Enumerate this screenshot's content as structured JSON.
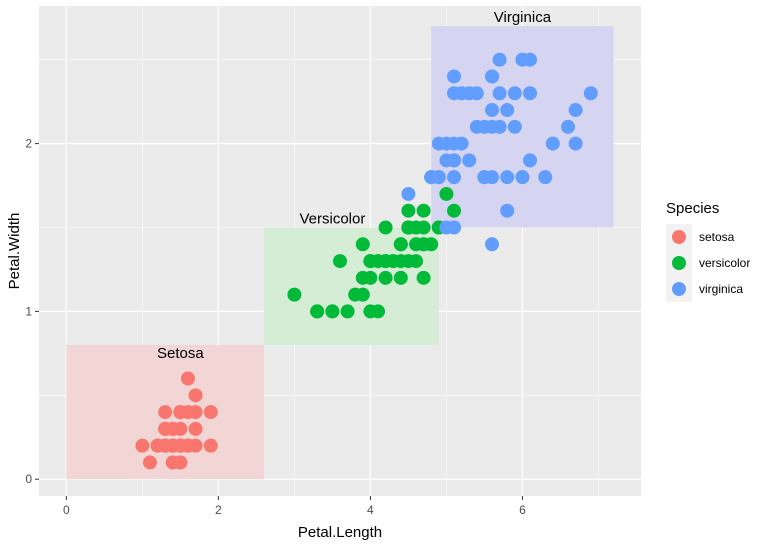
{
  "chart_data": {
    "type": "scatter",
    "title": "",
    "xlabel": "Petal.Length",
    "ylabel": "Petal.Width",
    "xlim": [
      -0.36,
      7.56
    ],
    "ylim": [
      -0.1,
      2.82
    ],
    "x_ticks": [
      0,
      2,
      4,
      6
    ],
    "y_ticks": [
      0,
      1,
      2
    ],
    "x_tick_labels": [
      "0",
      "2",
      "4",
      "6"
    ],
    "y_tick_labels": [
      "0",
      "1",
      "2"
    ],
    "grid": true,
    "legend": {
      "title": "Species",
      "position": "right",
      "entries": [
        "setosa",
        "versicolor",
        "virginica"
      ]
    },
    "colors": {
      "setosa": "#F8766D",
      "versicolor": "#00BA38",
      "virginica": "#619CFF",
      "panel": "#EBEBEB",
      "grid": "#FFFFFF",
      "rect_setosa": "#F2D5D5",
      "rect_versicolor": "#D5ECD5",
      "rect_virginica": "#D5D5F2"
    },
    "rectangles": [
      {
        "species": "setosa",
        "xmin": 0,
        "xmax": 2.6,
        "ymin": 0,
        "ymax": 0.8
      },
      {
        "species": "versicolor",
        "xmin": 2.6,
        "xmax": 4.9,
        "ymin": 0.8,
        "ymax": 1.5
      },
      {
        "species": "virginica",
        "xmin": 4.8,
        "xmax": 7.2,
        "ymin": 1.5,
        "ymax": 2.7
      }
    ],
    "annotations": [
      {
        "text": "Setosa",
        "x": 1.5,
        "y": 0.7
      },
      {
        "text": "Versicolor",
        "x": 3.5,
        "y": 1.5
      },
      {
        "text": "Virginica",
        "x": 6.0,
        "y": 2.7
      }
    ],
    "series": [
      {
        "name": "setosa",
        "points": [
          [
            1.4,
            0.2
          ],
          [
            1.4,
            0.2
          ],
          [
            1.3,
            0.2
          ],
          [
            1.5,
            0.2
          ],
          [
            1.4,
            0.2
          ],
          [
            1.7,
            0.4
          ],
          [
            1.4,
            0.3
          ],
          [
            1.5,
            0.2
          ],
          [
            1.4,
            0.2
          ],
          [
            1.5,
            0.1
          ],
          [
            1.5,
            0.2
          ],
          [
            1.6,
            0.2
          ],
          [
            1.4,
            0.1
          ],
          [
            1.1,
            0.1
          ],
          [
            1.2,
            0.2
          ],
          [
            1.5,
            0.4
          ],
          [
            1.3,
            0.4
          ],
          [
            1.4,
            0.3
          ],
          [
            1.7,
            0.3
          ],
          [
            1.5,
            0.3
          ],
          [
            1.7,
            0.2
          ],
          [
            1.5,
            0.4
          ],
          [
            1.0,
            0.2
          ],
          [
            1.7,
            0.5
          ],
          [
            1.9,
            0.2
          ],
          [
            1.6,
            0.2
          ],
          [
            1.6,
            0.4
          ],
          [
            1.5,
            0.2
          ],
          [
            1.4,
            0.2
          ],
          [
            1.6,
            0.2
          ],
          [
            1.6,
            0.2
          ],
          [
            1.5,
            0.4
          ],
          [
            1.5,
            0.1
          ],
          [
            1.4,
            0.2
          ],
          [
            1.5,
            0.2
          ],
          [
            1.2,
            0.2
          ],
          [
            1.3,
            0.2
          ],
          [
            1.4,
            0.1
          ],
          [
            1.3,
            0.2
          ],
          [
            1.5,
            0.2
          ],
          [
            1.3,
            0.3
          ],
          [
            1.3,
            0.3
          ],
          [
            1.3,
            0.2
          ],
          [
            1.6,
            0.6
          ],
          [
            1.9,
            0.4
          ],
          [
            1.4,
            0.3
          ],
          [
            1.6,
            0.2
          ],
          [
            1.4,
            0.2
          ],
          [
            1.5,
            0.2
          ],
          [
            1.4,
            0.2
          ]
        ]
      },
      {
        "name": "versicolor",
        "points": [
          [
            4.7,
            1.4
          ],
          [
            4.5,
            1.5
          ],
          [
            4.9,
            1.5
          ],
          [
            4.0,
            1.3
          ],
          [
            4.6,
            1.5
          ],
          [
            4.5,
            1.3
          ],
          [
            4.7,
            1.6
          ],
          [
            3.3,
            1.0
          ],
          [
            4.6,
            1.3
          ],
          [
            3.9,
            1.4
          ],
          [
            3.5,
            1.0
          ],
          [
            4.2,
            1.5
          ],
          [
            4.0,
            1.0
          ],
          [
            4.7,
            1.4
          ],
          [
            3.6,
            1.3
          ],
          [
            4.4,
            1.4
          ],
          [
            4.5,
            1.5
          ],
          [
            4.1,
            1.0
          ],
          [
            4.5,
            1.5
          ],
          [
            3.9,
            1.1
          ],
          [
            4.8,
            1.8
          ],
          [
            4.0,
            1.3
          ],
          [
            4.9,
            1.5
          ],
          [
            4.7,
            1.2
          ],
          [
            4.3,
            1.3
          ],
          [
            4.4,
            1.4
          ],
          [
            4.8,
            1.4
          ],
          [
            5.0,
            1.7
          ],
          [
            4.5,
            1.5
          ],
          [
            3.5,
            1.0
          ],
          [
            3.8,
            1.1
          ],
          [
            3.7,
            1.0
          ],
          [
            3.9,
            1.2
          ],
          [
            5.1,
            1.6
          ],
          [
            4.5,
            1.5
          ],
          [
            4.5,
            1.6
          ],
          [
            4.7,
            1.5
          ],
          [
            4.4,
            1.3
          ],
          [
            4.1,
            1.3
          ],
          [
            4.0,
            1.3
          ],
          [
            4.4,
            1.2
          ],
          [
            4.6,
            1.4
          ],
          [
            4.0,
            1.2
          ],
          [
            3.3,
            1.0
          ],
          [
            4.2,
            1.3
          ],
          [
            4.2,
            1.2
          ],
          [
            4.2,
            1.3
          ],
          [
            4.3,
            1.3
          ],
          [
            3.0,
            1.1
          ],
          [
            4.1,
            1.3
          ]
        ]
      },
      {
        "name": "virginica",
        "points": [
          [
            6.0,
            2.5
          ],
          [
            5.1,
            1.9
          ],
          [
            5.9,
            2.1
          ],
          [
            5.6,
            1.8
          ],
          [
            5.8,
            2.2
          ],
          [
            6.6,
            2.1
          ],
          [
            4.5,
            1.7
          ],
          [
            6.3,
            1.8
          ],
          [
            5.8,
            1.8
          ],
          [
            6.1,
            2.5
          ],
          [
            5.1,
            2.0
          ],
          [
            5.3,
            1.9
          ],
          [
            5.5,
            2.1
          ],
          [
            5.0,
            2.0
          ],
          [
            5.1,
            2.4
          ],
          [
            5.3,
            2.3
          ],
          [
            5.5,
            1.8
          ],
          [
            6.7,
            2.2
          ],
          [
            6.9,
            2.3
          ],
          [
            5.0,
            1.5
          ],
          [
            5.7,
            2.3
          ],
          [
            4.9,
            2.0
          ],
          [
            6.7,
            2.0
          ],
          [
            4.9,
            1.8
          ],
          [
            5.7,
            2.1
          ],
          [
            6.0,
            1.8
          ],
          [
            4.8,
            1.8
          ],
          [
            4.9,
            1.8
          ],
          [
            5.6,
            2.1
          ],
          [
            5.8,
            1.6
          ],
          [
            6.1,
            1.9
          ],
          [
            6.4,
            2.0
          ],
          [
            5.6,
            2.2
          ],
          [
            5.1,
            1.5
          ],
          [
            5.6,
            1.4
          ],
          [
            6.1,
            2.3
          ],
          [
            5.6,
            2.4
          ],
          [
            5.5,
            1.8
          ],
          [
            4.8,
            1.8
          ],
          [
            5.4,
            2.1
          ],
          [
            5.6,
            2.4
          ],
          [
            5.1,
            2.3
          ],
          [
            5.1,
            1.9
          ],
          [
            5.9,
            2.3
          ],
          [
            5.7,
            2.5
          ],
          [
            5.2,
            2.3
          ],
          [
            5.0,
            1.9
          ],
          [
            5.2,
            2.0
          ],
          [
            5.4,
            2.3
          ],
          [
            5.1,
            1.8
          ]
        ]
      }
    ]
  }
}
